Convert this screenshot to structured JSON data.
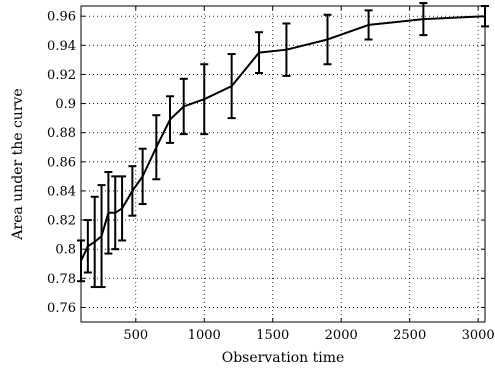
{
  "chart_data": {
    "type": "line",
    "title": "",
    "xlabel": "Observation time",
    "ylabel": "Area under the curve",
    "xlim": [
      100,
      3050
    ],
    "ylim": [
      0.75,
      0.967
    ],
    "grid": true,
    "grid_style": "dotted",
    "line_color": "#000000",
    "x_ticks": [
      500,
      1000,
      1500,
      2000,
      2500,
      3000
    ],
    "y_ticks": [
      0.76,
      0.78,
      0.8,
      0.82,
      0.84,
      0.86,
      0.88,
      0.9,
      0.92,
      0.94,
      0.96
    ],
    "x_tick_labels": [
      "500",
      "1000",
      "1500",
      "2000",
      "2500",
      "3000"
    ],
    "y_tick_labels": [
      "0.76",
      "0.78",
      "0.8",
      "0.82",
      "0.84",
      "0.86",
      "0.88",
      "0.9",
      "0.92",
      "0.94",
      "0.96"
    ],
    "series": [
      {
        "x": [
          100,
          150,
          200,
          250,
          300,
          350,
          400,
          475,
          550,
          650,
          750,
          850,
          1000,
          1200,
          1400,
          1600,
          1900,
          2200,
          2600,
          3050
        ],
        "y": [
          0.792,
          0.802,
          0.805,
          0.809,
          0.825,
          0.825,
          0.828,
          0.84,
          0.85,
          0.87,
          0.889,
          0.898,
          0.903,
          0.912,
          0.935,
          0.937,
          0.944,
          0.954,
          0.958,
          0.96
        ],
        "error": [
          0.014,
          0.018,
          0.031,
          0.035,
          0.028,
          0.025,
          0.022,
          0.017,
          0.019,
          0.022,
          0.016,
          0.019,
          0.024,
          0.022,
          0.014,
          0.018,
          0.017,
          0.01,
          0.011,
          0.007
        ]
      }
    ]
  }
}
